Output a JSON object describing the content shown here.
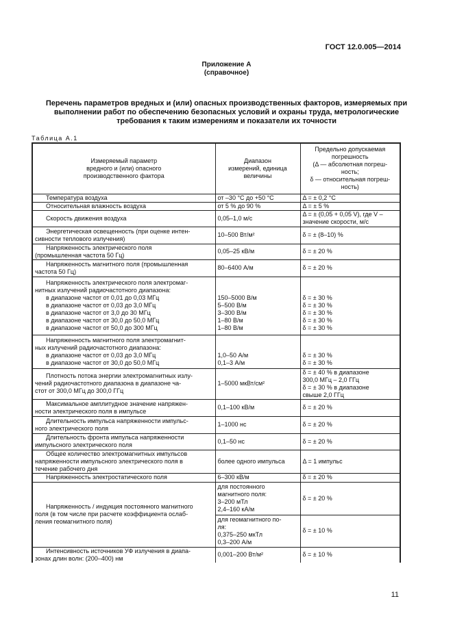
{
  "header": {
    "standard": "ГОСТ 12.0.005—2014"
  },
  "appendix": {
    "title": "Приложение А",
    "subtitle": "(справочное)"
  },
  "document_title": [
    "Перечень параметров вредных и (или) опасных производственных факторов, измеряемых при",
    "выполнении работ по обеспечению безопасных условий и охраны труда, метрологические",
    "требования к таким измерениям и показатели их точности"
  ],
  "table_caption": "Таблица А.1",
  "table": {
    "headers": [
      [
        "Измеряемый параметр",
        "вредного и (или) опасного",
        "производственного фактора"
      ],
      [
        "Диапазон",
        "измерений, единица",
        "величины"
      ],
      [
        "Предельно допускаемая",
        "погрешность",
        "(Δ — абсолютная погреш-",
        "ность;",
        "δ — относительная погреш-",
        "ность)"
      ]
    ],
    "rows": [
      {
        "h": 12,
        "c": [
          [
            "Температура воздуха"
          ],
          [
            "от –30 °С до +50 °С"
          ],
          [
            "Δ = ± 0,2 °С"
          ]
        ]
      },
      {
        "h": 12,
        "c": [
          [
            "Относительная влажность воздуха"
          ],
          [
            "от 5 % до 90 %"
          ],
          [
            "Δ = ± 5 %"
          ]
        ]
      },
      {
        "h": 24,
        "c": [
          [
            "Скорость движения воздуха"
          ],
          [
            "0,05–1,0 м/с"
          ],
          [
            "Δ = ± (0,05 + 0,05 V), где V –",
            "значение скорости, м/с"
          ]
        ]
      },
      {
        "h": 25,
        "c": [
          [
            "Энергетическая освещенность (при оценке интен-",
            "сивности теплового излучения)"
          ],
          [
            "10–500 Вт/м²"
          ],
          [
            "δ = ± (8–10) %"
          ]
        ]
      },
      {
        "h": 23,
        "c": [
          [
            "Напряженность электрического поля",
            "(промышленная частота 50 Гц)"
          ],
          [
            "0,05–25 кВ/м"
          ],
          [
            "δ = ± 20 %"
          ]
        ]
      },
      {
        "h": 25,
        "c": [
          [
            "Напряженность магнитного поля (промышленная",
            "частота 50 Гц)"
          ],
          [
            "80–6400 А/м"
          ],
          [
            "δ = ± 20 %"
          ]
        ]
      },
      {
        "h": 85,
        "c": [
          [
            "Напряженность электрического поля электромаг-",
            "нитных излучений радиочастотного диапазона:",
            "  в диапазоне частот от 0,01 до 0,03 МГц",
            "  в диапазоне частот от 0,03 до 3,0 МГц",
            "  в диапазоне частот  от 3,0 до 30 МГц",
            "  в диапазоне частот от 30,0 до 50,0 МГц",
            "  в диапазоне частот от 50,0 до 300 МГц"
          ],
          [
            "",
            "",
            "150–5000 В/м",
            "5–500 В/м",
            "3–300 В/м",
            "1–80 В/м",
            "1–80 В/м"
          ],
          [
            "",
            "",
            "δ = ± 30 %",
            "δ = ± 30 %",
            "δ = ± 30 %",
            "δ = ± 30 %",
            "δ = ± 30 %"
          ]
        ]
      },
      {
        "h": 49,
        "c": [
          [
            "Напряженность магнитного поля электромагнит-",
            "ных излучений радиочастотного диапазона:",
            "  в диапазоне частот от 0,03 до 3,0 МГц",
            "  в диапазоне частот от 30,0 до 50,0 МГц"
          ],
          [
            "",
            "",
            "1,0–50 А/м",
            "0,1–3 А/м"
          ],
          [
            "",
            "",
            "δ = ± 30 %",
            "δ = ± 30 %"
          ]
        ]
      },
      {
        "h": 45,
        "c": [
          [
            "Плотность потока энергии электромагнитных излу-",
            "чений радиочастотного диапазона в диапазоне ча-",
            "стот от 300,0 МГц до 300,0 ГГц"
          ],
          [
            "1–5000 мкВт/см²"
          ],
          [
            "δ =  ± 40 %  в диапазоне",
            "300,0 МГц – 2,0 ГГц",
            "δ = ± 30 % в диапазоне",
            "свыше 2,0 ГГц"
          ]
        ]
      },
      {
        "h": 25,
        "c": [
          [
            "Максимальное амплитудное значение напряжен-",
            "ности электрического поля в импульсе"
          ],
          [
            "0,1–100 кВ/м"
          ],
          [
            "δ =  ± 20 %"
          ]
        ]
      },
      {
        "h": 25,
        "c": [
          [
            "Длительность импульса напряженности импульс-",
            "ного электрического поля"
          ],
          [
            "1–1000 нс"
          ],
          [
            "δ = ± 20 %"
          ]
        ]
      },
      {
        "h": 24,
        "c": [
          [
            "Длительность фронта импульса напряженности",
            "импульсного электрического поля"
          ],
          [
            "0,1–50 нс"
          ],
          [
            "δ = ± 20 %"
          ]
        ]
      },
      {
        "h": 33,
        "c": [
          [
            "Общее количество электромагнитных импульсов",
            "напряженности импульсного электрического поля в",
            "течение рабочего дня"
          ],
          [
            "более одного импульса"
          ],
          [
            "Δ = 1 импульс"
          ]
        ]
      },
      {
        "h": 13,
        "c": [
          [
            "Напряженность электростатического поля"
          ],
          [
            "6–300 кВ/м"
          ],
          [
            "δ = ± 20 %"
          ]
        ]
      }
    ],
    "magnetic_row": {
      "param": [
        "Напряженность / индукция постоянного магнитного",
        "поля (в том числе при расчете коэффициента ослаб-",
        "ления геомагнитного поля)"
      ],
      "ranges": [
        [
          "для постоянного",
          "магнитного поля:",
          "3–200 мТл",
          "2,4–160 кА/м"
        ],
        [
          "для геомагнитного по-",
          "ля:",
          "0,375–250 мкТл",
          "0,3–200 А/м"
        ]
      ],
      "errors": [
        "δ = ± 20 %",
        "δ = ± 10 %"
      ]
    },
    "last_row": {
      "h": 23,
      "c": [
        [
          "Интенсивность источников УФ излучения в диапа-",
          "зонах длин волн: (200–400) нм"
        ],
        [
          "0,001–200 Вт/м²"
        ],
        [
          "δ = ± 10 %"
        ]
      ]
    }
  },
  "page_number": "11"
}
